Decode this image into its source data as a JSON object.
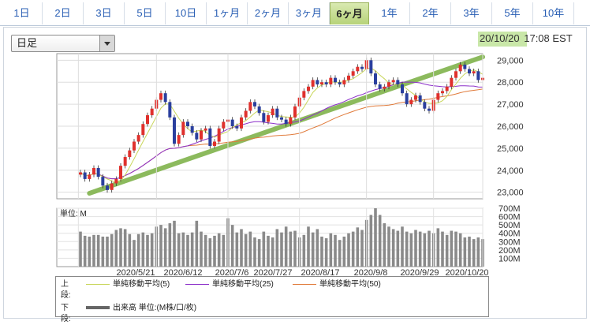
{
  "period_tabs": [
    "1日",
    "2日",
    "3日",
    "5日",
    "10日",
    "1ヶ月",
    "2ヶ月",
    "3ヶ月",
    "6ヶ月",
    "1年",
    "2年",
    "3年",
    "5年",
    "10年"
  ],
  "active_tab": "6ヶ月",
  "chart_type_select": {
    "value": "日足"
  },
  "timestamp": {
    "date": "20/10/20",
    "time": "17:08 EST"
  },
  "colors": {
    "accent_tab": "#b7d37a",
    "up_candle": "#e0302c",
    "down_candle": "#2a3f9e",
    "ma5": "#c8d65a",
    "ma25": "#8b2fc9",
    "ma50": "#e07a3a",
    "trend": "#7fb24b",
    "volume": "#8a8a8a"
  },
  "chart_data": [
    {
      "type": "candlestick",
      "x_ticks": [
        "2020/5/21",
        "2020/6/12",
        "2020/7/6",
        "2020/7/27",
        "2020/8/17",
        "2020/9/8",
        "2020/9/29",
        "2020/10/20"
      ],
      "y_ticks": [
        "29,000",
        "28,000",
        "27,000",
        "26,000",
        "25,000",
        "24,000",
        "23,000"
      ],
      "ylim": [
        22700,
        29300
      ],
      "grid": true,
      "closes": [
        23900,
        23600,
        23800,
        24100,
        23700,
        23300,
        23100,
        23400,
        23600,
        24200,
        24600,
        24900,
        25300,
        25600,
        26100,
        26500,
        26800,
        27200,
        27500,
        27100,
        26400,
        25200,
        25600,
        26200,
        26000,
        25700,
        25400,
        25800,
        25900,
        25100,
        25300,
        25900,
        26200,
        26300,
        26000,
        25900,
        26400,
        26700,
        27100,
        26900,
        26600,
        26200,
        26500,
        26800,
        26400,
        26300,
        26100,
        26400,
        26900,
        27300,
        27600,
        27800,
        28100,
        27900,
        28000,
        27900,
        28200,
        28000,
        27900,
        28100,
        28300,
        28500,
        28700,
        28600,
        29000,
        28400,
        27900,
        27700,
        27800,
        28000,
        28100,
        27900,
        27500,
        27000,
        27200,
        27400,
        27100,
        26800,
        26700,
        27200,
        27500,
        27600,
        27800,
        28200,
        28500,
        28800,
        28600,
        28400,
        28500,
        28100,
        28200
      ],
      "series": [
        {
          "name": "単純移動平均(5)",
          "style": "ma5"
        },
        {
          "name": "単純移動平均(25)",
          "style": "ma25"
        },
        {
          "name": "単純移動平均(50)",
          "style": "ma50"
        }
      ]
    },
    {
      "type": "bar",
      "label": "単位: M",
      "y_ticks": [
        "700M",
        "600M",
        "500M",
        "400M",
        "300M",
        "200M",
        "100M"
      ],
      "ylim": [
        0,
        700
      ],
      "values": [
        420,
        370,
        360,
        380,
        380,
        360,
        360,
        390,
        440,
        460,
        450,
        390,
        320,
        390,
        410,
        380,
        400,
        480,
        500,
        460,
        520,
        550,
        400,
        410,
        380,
        410,
        550,
        420,
        380,
        340,
        370,
        400,
        380,
        580,
        500,
        410,
        450,
        390,
        420,
        350,
        330,
        420,
        370,
        350,
        450,
        410,
        480,
        420,
        430,
        350,
        380,
        480,
        410,
        450,
        360,
        340,
        400,
        380,
        320,
        360,
        400,
        420,
        470,
        440,
        560,
        620,
        700,
        620,
        520,
        480,
        450,
        430,
        480,
        420,
        400,
        440,
        420,
        400,
        430,
        400,
        460,
        420,
        380,
        430,
        420,
        400,
        350,
        360,
        330,
        350,
        330
      ]
    }
  ],
  "legend": {
    "upper_label": "上段:",
    "lower_label": "下段:",
    "items": [
      "単純移動平均(5)",
      "単純移動平均(25)",
      "単純移動平均(50)"
    ],
    "volume_item": "出来高 単位:(M株/口/枚)"
  }
}
